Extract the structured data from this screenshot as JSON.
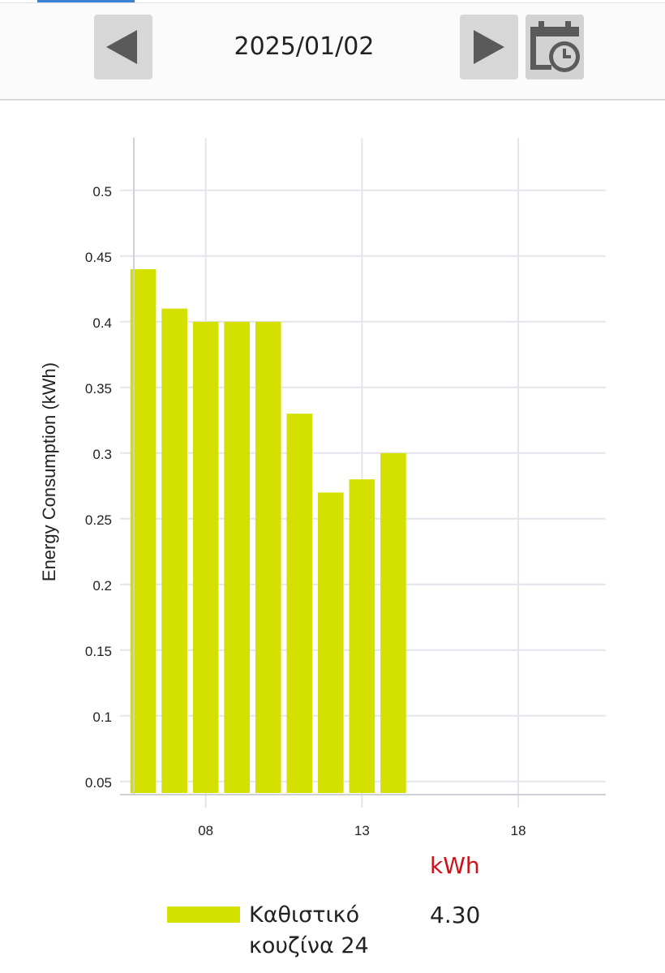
{
  "header": {
    "date": "2025/01/02",
    "prev_icon": "triangle-left-icon",
    "next_icon": "triangle-right-icon",
    "calendar_icon": "calendar-clock-icon"
  },
  "colors": {
    "bar": "#d4e000",
    "icon": "#5a5a5a",
    "unit_label": "#d0121b"
  },
  "chart_data": {
    "type": "bar",
    "ylabel": "Energy Consumption (kWh)",
    "xlabel": "",
    "x_ticks": [
      "08",
      "13",
      "18"
    ],
    "y_ticks": [
      "0.05",
      "0.1",
      "0.15",
      "0.2",
      "0.25",
      "0.3",
      "0.35",
      "0.4",
      "0.45",
      "0.5"
    ],
    "ylim": [
      0.04,
      0.54
    ],
    "xlim": [
      5.7,
      20.8
    ],
    "grid": true,
    "series": [
      {
        "name": "Καθιστικό κουζίνα 24",
        "x": [
          6,
          7,
          8,
          9,
          10,
          11,
          12,
          13,
          14
        ],
        "values": [
          0.44,
          0.41,
          0.4,
          0.4,
          0.4,
          0.33,
          0.27,
          0.28,
          0.3
        ]
      }
    ]
  },
  "summary": {
    "unit": "kWh",
    "legend_name_line1": "Καθιστικό",
    "legend_name_line2": "κουζίνα 24",
    "total": "4.30"
  }
}
